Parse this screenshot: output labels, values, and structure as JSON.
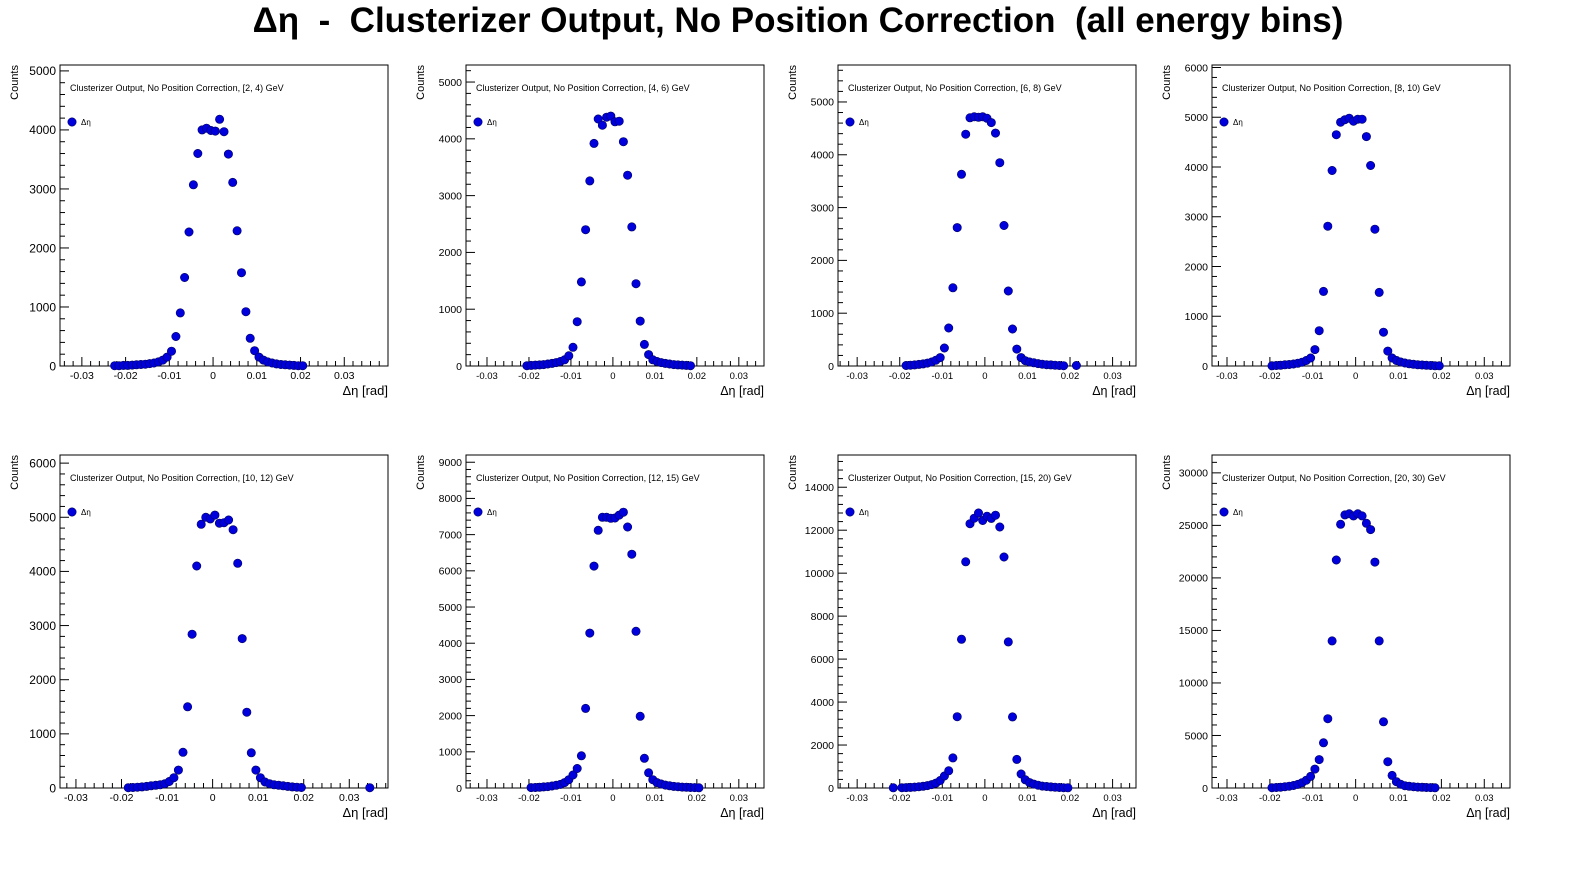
{
  "page": {
    "title": "Δη  -  Clusterizer Output, No Position Correction  (all energy bins)"
  },
  "colors": {
    "marker": "#0000dd",
    "axis": "#000000"
  },
  "chart_data": [
    {
      "type": "scatter",
      "title": "Clusterizer Output, No Position Correction, [2, 4) GeV",
      "xlabel": "Δη  [rad]",
      "ylabel": "Counts",
      "legend": "Δη",
      "legend_position": "top-left",
      "xlim": [
        -0.035,
        0.04
      ],
      "ylim": [
        0,
        5100
      ],
      "xticks": [
        -0.03,
        -0.02,
        -0.01,
        0,
        0.01,
        0.02,
        0.03
      ],
      "yticks": [
        0,
        1000,
        2000,
        3000,
        4000,
        5000
      ],
      "x": [
        -0.0225,
        -0.0215,
        -0.0205,
        -0.0195,
        -0.0185,
        -0.0175,
        -0.0165,
        -0.0155,
        -0.0145,
        -0.0135,
        -0.0125,
        -0.0115,
        -0.0105,
        -0.0095,
        -0.0085,
        -0.0075,
        -0.0065,
        -0.0055,
        -0.0045,
        -0.0035,
        -0.0025,
        -0.0015,
        -0.0005,
        0.0005,
        0.0015,
        0.0025,
        0.0035,
        0.0045,
        0.0055,
        0.0065,
        0.0075,
        0.0085,
        0.0095,
        0.0105,
        0.0115,
        0.0125,
        0.0135,
        0.0145,
        0.0155,
        0.0165,
        0.0175,
        0.0185,
        0.0195,
        0.0205
      ],
      "y": [
        5,
        5,
        10,
        10,
        15,
        20,
        25,
        30,
        40,
        50,
        70,
        100,
        150,
        250,
        500,
        900,
        1500,
        2270,
        3070,
        3600,
        4000,
        4030,
        3990,
        3980,
        4180,
        3970,
        3590,
        3110,
        2290,
        1580,
        920,
        470,
        260,
        150,
        100,
        70,
        50,
        35,
        25,
        20,
        15,
        10,
        5,
        5
      ]
    },
    {
      "type": "scatter",
      "title": "Clusterizer Output, No Position Correction, [4, 6) GeV",
      "xlabel": "Δη  [rad]",
      "ylabel": "Counts",
      "legend": "Δη",
      "legend_position": "top-left",
      "xlim": [
        -0.035,
        0.036
      ],
      "ylim": [
        0,
        5300
      ],
      "xticks": [
        -0.03,
        -0.02,
        -0.01,
        0,
        0.01,
        0.02,
        0.03
      ],
      "yticks": [
        0,
        1000,
        2000,
        3000,
        4000,
        5000
      ],
      "x": [
        -0.0205,
        -0.0195,
        -0.0185,
        -0.0175,
        -0.0165,
        -0.0155,
        -0.0145,
        -0.0135,
        -0.0125,
        -0.0115,
        -0.0105,
        -0.0095,
        -0.0085,
        -0.0075,
        -0.0065,
        -0.0055,
        -0.0045,
        -0.0035,
        -0.0025,
        -0.0015,
        -0.0005,
        0.0005,
        0.0015,
        0.0025,
        0.0035,
        0.0045,
        0.0055,
        0.0065,
        0.0075,
        0.0085,
        0.0095,
        0.0105,
        0.0115,
        0.0125,
        0.0135,
        0.0145,
        0.0155,
        0.0165,
        0.0175,
        0.0185
      ],
      "y": [
        5,
        10,
        15,
        20,
        25,
        35,
        45,
        60,
        80,
        110,
        180,
        330,
        780,
        1480,
        2400,
        3260,
        3920,
        4350,
        4240,
        4380,
        4400,
        4300,
        4310,
        3950,
        3360,
        2450,
        1450,
        790,
        380,
        200,
        110,
        80,
        60,
        45,
        35,
        25,
        20,
        15,
        10,
        5
      ]
    },
    {
      "type": "scatter",
      "title": "Clusterizer Output, No Position Correction, [6, 8) GeV",
      "xlabel": "Δη  [rad]",
      "ylabel": "Counts",
      "legend": "Δη",
      "legend_position": "top-left",
      "xlim": [
        -0.0345,
        0.0355
      ],
      "ylim": [
        0,
        5700
      ],
      "xticks": [
        -0.03,
        -0.02,
        -0.01,
        0,
        0.01,
        0.02,
        0.03
      ],
      "yticks": [
        0,
        1000,
        2000,
        3000,
        4000,
        5000
      ],
      "x": [
        -0.0185,
        -0.0175,
        -0.0165,
        -0.0155,
        -0.0145,
        -0.0135,
        -0.0125,
        -0.0115,
        -0.0105,
        -0.0095,
        -0.0085,
        -0.0075,
        -0.0065,
        -0.0055,
        -0.0045,
        -0.0035,
        -0.0025,
        -0.0015,
        -0.0005,
        0.0005,
        0.0015,
        0.0025,
        0.0035,
        0.0045,
        0.0055,
        0.0065,
        0.0075,
        0.0085,
        0.0095,
        0.0105,
        0.0115,
        0.0125,
        0.0135,
        0.0145,
        0.0155,
        0.0165,
        0.0175,
        0.0185,
        0.0215
      ],
      "y": [
        10,
        15,
        20,
        30,
        40,
        55,
        75,
        110,
        160,
        340,
        720,
        1480,
        2620,
        3630,
        4390,
        4700,
        4720,
        4710,
        4720,
        4690,
        4610,
        4410,
        3850,
        2660,
        1420,
        700,
        320,
        160,
        100,
        75,
        60,
        45,
        35,
        25,
        20,
        15,
        10,
        5,
        10
      ]
    },
    {
      "type": "scatter",
      "title": "Clusterizer Output, No Position Correction, [8, 10) GeV",
      "xlabel": "Δη  [rad]",
      "ylabel": "Counts",
      "legend": "Δη",
      "legend_position": "top-left",
      "xlim": [
        -0.0335,
        0.036
      ],
      "ylim": [
        0,
        6050
      ],
      "xticks": [
        -0.03,
        -0.02,
        -0.01,
        0,
        0.01,
        0.02,
        0.03
      ],
      "yticks": [
        0,
        1000,
        2000,
        3000,
        4000,
        5000,
        6000
      ],
      "x": [
        -0.0195,
        -0.0185,
        -0.0175,
        -0.0165,
        -0.0155,
        -0.0145,
        -0.0135,
        -0.0125,
        -0.0115,
        -0.0105,
        -0.0095,
        -0.0085,
        -0.0075,
        -0.0065,
        -0.0055,
        -0.0045,
        -0.0035,
        -0.0025,
        -0.0015,
        -0.0005,
        0.0005,
        0.0015,
        0.0025,
        0.0035,
        0.0045,
        0.0055,
        0.0065,
        0.0075,
        0.0085,
        0.0095,
        0.0105,
        0.0115,
        0.0125,
        0.0135,
        0.0145,
        0.0155,
        0.0165,
        0.0175,
        0.0185,
        0.0195
      ],
      "y": [
        5,
        10,
        15,
        25,
        30,
        40,
        55,
        75,
        110,
        160,
        330,
        710,
        1500,
        2810,
        3930,
        4650,
        4900,
        4950,
        4980,
        4920,
        4960,
        4960,
        4610,
        4030,
        2750,
        1480,
        680,
        300,
        160,
        110,
        80,
        60,
        45,
        35,
        25,
        20,
        15,
        10,
        5,
        5
      ]
    },
    {
      "type": "scatter",
      "title": "Clusterizer Output, No Position Correction, [10, 12) GeV",
      "xlabel": "Δη  [rad]",
      "ylabel": "Counts",
      "legend": "Δη",
      "legend_position": "top-left",
      "xlim": [
        -0.0335,
        0.0385
      ],
      "ylim": [
        0,
        6150
      ],
      "xticks": [
        -0.03,
        -0.02,
        -0.01,
        0,
        0.01,
        0.02,
        0.03
      ],
      "yticks": [
        0,
        1000,
        2000,
        3000,
        4000,
        5000,
        6000
      ],
      "x": [
        -0.0185,
        -0.0175,
        -0.0165,
        -0.0155,
        -0.0145,
        -0.0135,
        -0.0125,
        -0.0115,
        -0.0105,
        -0.0095,
        -0.0085,
        -0.0075,
        -0.0065,
        -0.0055,
        -0.0045,
        -0.0035,
        -0.0025,
        -0.0015,
        -0.0005,
        0.0005,
        0.0015,
        0.0025,
        0.0035,
        0.0045,
        0.0055,
        0.0065,
        0.0075,
        0.0085,
        0.0095,
        0.0105,
        0.0115,
        0.0125,
        0.0135,
        0.0145,
        0.0155,
        0.0165,
        0.0175,
        0.0185,
        0.0195,
        0.0345
      ],
      "y": [
        5,
        10,
        15,
        20,
        30,
        40,
        50,
        60,
        80,
        120,
        190,
        330,
        660,
        1500,
        2840,
        4100,
        4870,
        5000,
        4970,
        5040,
        4890,
        4900,
        4950,
        4770,
        4150,
        2760,
        1400,
        650,
        330,
        190,
        110,
        80,
        60,
        50,
        40,
        30,
        20,
        15,
        10,
        5
      ]
    },
    {
      "type": "scatter",
      "title": "Clusterizer Output, No Position Correction, [12, 15) GeV",
      "xlabel": "Δη  [rad]",
      "ylabel": "Counts",
      "legend": "Δη",
      "legend_position": "top-left",
      "xlim": [
        -0.035,
        0.036
      ],
      "ylim": [
        0,
        9200
      ],
      "xticks": [
        -0.03,
        -0.02,
        -0.01,
        0,
        0.01,
        0.02,
        0.03
      ],
      "yticks": [
        0,
        1000,
        2000,
        3000,
        4000,
        5000,
        6000,
        7000,
        8000,
        9000
      ],
      "x": [
        -0.0195,
        -0.0185,
        -0.0175,
        -0.0165,
        -0.0155,
        -0.0145,
        -0.0135,
        -0.0125,
        -0.0115,
        -0.0105,
        -0.0095,
        -0.0085,
        -0.0075,
        -0.0065,
        -0.0055,
        -0.0045,
        -0.0035,
        -0.0025,
        -0.0015,
        -0.0005,
        0.0005,
        0.0015,
        0.0025,
        0.0035,
        0.0045,
        0.0055,
        0.0065,
        0.0075,
        0.0085,
        0.0095,
        0.0105,
        0.0115,
        0.0125,
        0.0135,
        0.0145,
        0.0155,
        0.0165,
        0.0175,
        0.0185,
        0.0195,
        0.0205
      ],
      "y": [
        10,
        15,
        20,
        30,
        40,
        55,
        75,
        100,
        150,
        230,
        360,
        540,
        890,
        2200,
        4280,
        6130,
        7120,
        7480,
        7480,
        7450,
        7460,
        7540,
        7620,
        7210,
        6460,
        4330,
        1980,
        820,
        420,
        230,
        150,
        110,
        80,
        60,
        45,
        35,
        25,
        20,
        15,
        10,
        5
      ]
    },
    {
      "type": "scatter",
      "title": "Clusterizer Output, No Position Correction, [15, 20) GeV",
      "xlabel": "Δη  [rad]",
      "ylabel": "Counts",
      "legend": "Δη",
      "legend_position": "top-left",
      "xlim": [
        -0.0345,
        0.0355
      ],
      "ylim": [
        0,
        15500
      ],
      "xticks": [
        -0.03,
        -0.02,
        -0.01,
        0,
        0.01,
        0.02,
        0.03
      ],
      "yticks": [
        0,
        2000,
        4000,
        6000,
        8000,
        10000,
        12000,
        14000
      ],
      "x": [
        -0.0215,
        -0.0195,
        -0.0185,
        -0.0175,
        -0.0165,
        -0.0155,
        -0.0145,
        -0.0135,
        -0.0125,
        -0.0115,
        -0.0105,
        -0.0095,
        -0.0085,
        -0.0075,
        -0.0065,
        -0.0055,
        -0.0045,
        -0.0035,
        -0.0025,
        -0.0015,
        -0.0005,
        0.0005,
        0.0015,
        0.0025,
        0.0035,
        0.0045,
        0.0055,
        0.0065,
        0.0075,
        0.0085,
        0.0095,
        0.0105,
        0.0115,
        0.0125,
        0.0135,
        0.0145,
        0.0155,
        0.0165,
        0.0175,
        0.0185,
        0.0195
      ],
      "y": [
        10,
        15,
        20,
        30,
        40,
        60,
        80,
        110,
        160,
        230,
        350,
        560,
        800,
        1400,
        3320,
        6920,
        10530,
        12300,
        12560,
        12800,
        12450,
        12650,
        12550,
        12700,
        12150,
        10750,
        6800,
        3310,
        1330,
        650,
        380,
        250,
        180,
        130,
        90,
        70,
        50,
        35,
        25,
        15,
        10
      ]
    },
    {
      "type": "scatter",
      "title": "Clusterizer Output, No Position Correction, [20, 30) GeV",
      "xlabel": "Δη  [rad]",
      "ylabel": "Counts",
      "legend": "Δη",
      "legend_position": "top-left",
      "xlim": [
        -0.0335,
        0.036
      ],
      "ylim": [
        0,
        31700
      ],
      "xticks": [
        -0.03,
        -0.02,
        -0.01,
        0,
        0.01,
        0.02,
        0.03
      ],
      "yticks": [
        0,
        5000,
        10000,
        15000,
        20000,
        25000,
        30000
      ],
      "x": [
        -0.0195,
        -0.0185,
        -0.0175,
        -0.0165,
        -0.0155,
        -0.0145,
        -0.0135,
        -0.0125,
        -0.0115,
        -0.0105,
        -0.0095,
        -0.0085,
        -0.0075,
        -0.0065,
        -0.0055,
        -0.0045,
        -0.0035,
        -0.0025,
        -0.0015,
        -0.0005,
        0.0005,
        0.0015,
        0.0025,
        0.0035,
        0.0045,
        0.0055,
        0.0065,
        0.0075,
        0.0085,
        0.0095,
        0.0105,
        0.0115,
        0.0125,
        0.0135,
        0.0145,
        0.0155,
        0.0165,
        0.0175,
        0.0185
      ],
      "y": [
        30,
        50,
        80,
        120,
        170,
        240,
        340,
        500,
        740,
        1100,
        1800,
        2700,
        4300,
        6600,
        14000,
        21700,
        25100,
        26000,
        26100,
        25900,
        26100,
        25900,
        25200,
        24600,
        21500,
        14000,
        6300,
        2500,
        1200,
        600,
        350,
        220,
        160,
        120,
        90,
        70,
        50,
        35,
        20
      ]
    }
  ]
}
